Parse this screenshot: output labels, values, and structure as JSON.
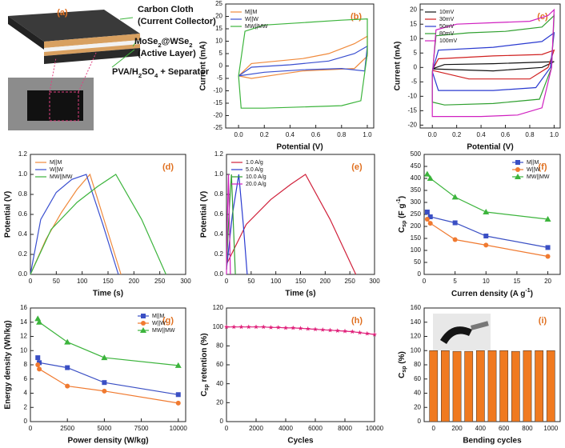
{
  "schematic": {
    "label": "(a)",
    "texts": [
      "Carbon Cloth",
      "(Current Collector)",
      [
        {
          "text": "MoSe"
        },
        {
          "text": "2",
          "sub": true
        },
        {
          "text": "@WSe"
        },
        {
          "text": "2",
          "sub": true
        }
      ],
      "(Active Layer)",
      [
        {
          "text": "PVA/H"
        },
        {
          "text": "2",
          "sub": true
        },
        {
          "text": "SO"
        },
        {
          "text": "4",
          "sub": true
        },
        {
          "text": " + Separator"
        }
      ]
    ]
  },
  "chart_data": [
    {
      "type": "line",
      "label": "(b)",
      "xlabel": "Potential (V)",
      "ylabel": "Current (mA)",
      "legend": "upper left",
      "xlim": [
        -0.1,
        1.05
      ],
      "ylim": [
        -25,
        25
      ],
      "xticks": [
        {
          "value": 0,
          "label": "0.0"
        },
        {
          "value": 0.2,
          "label": "0.2"
        },
        {
          "value": 0.4,
          "label": "0.4"
        },
        {
          "value": 0.6,
          "label": "0.6"
        },
        {
          "value": 0.8,
          "label": "0.8"
        },
        {
          "value": 1,
          "label": "1.0"
        }
      ],
      "yticks": [
        -25,
        -20,
        -15,
        -10,
        -5,
        0,
        5,
        10,
        15,
        20,
        25
      ],
      "series": [
        {
          "name": "M||M",
          "color": "#f08a3c",
          "x": [
            0,
            0.1,
            0.3,
            0.5,
            0.7,
            0.9,
            1.0,
            1.0,
            0.9,
            0.7,
            0.5,
            0.3,
            0.1,
            0
          ],
          "values": [
            -4,
            1,
            2,
            3,
            5,
            9,
            12,
            4,
            -1,
            -1.5,
            -2,
            -3.5,
            -5,
            -4
          ]
        },
        {
          "name": "W||W",
          "color": "#3a4fd0",
          "x": [
            0,
            0.1,
            0.4,
            0.7,
            0.9,
            1.0,
            0.98,
            0.8,
            0.5,
            0.2,
            0
          ],
          "values": [
            -4,
            -0.5,
            0.5,
            2,
            5,
            8,
            -2,
            -1,
            -1.5,
            -2.5,
            -4
          ]
        },
        {
          "name": "MW||MW",
          "color": "#3cb43c",
          "x": [
            0,
            0.05,
            0.2,
            0.5,
            0.8,
            1.0,
            1.0,
            0.95,
            0.8,
            0.5,
            0.2,
            0.02,
            0
          ],
          "values": [
            -4,
            14,
            16.5,
            17.5,
            18.5,
            19,
            5,
            -14,
            -16,
            -16.5,
            -17,
            -17,
            -4
          ]
        }
      ]
    },
    {
      "type": "line",
      "label": "(c)",
      "xlabel": "Potential (V)",
      "ylabel": "Current (mA)",
      "legend": "upper left",
      "xlim": [
        -0.1,
        1.05
      ],
      "ylim": [
        -21,
        22
      ],
      "xticks": [
        {
          "value": 0,
          "label": "0.0"
        },
        {
          "value": 0.2,
          "label": "0.2"
        },
        {
          "value": 0.4,
          "label": "0.4"
        },
        {
          "value": 0.6,
          "label": "0.6"
        },
        {
          "value": 0.8,
          "label": "0.8"
        },
        {
          "value": 1,
          "label": "1.0"
        }
      ],
      "yticks": [
        -20,
        -15,
        -10,
        -5,
        0,
        5,
        10,
        15,
        20
      ],
      "series": [
        {
          "name": "10mV",
          "color": "#111111",
          "x": [
            0,
            0.1,
            0.5,
            1.0,
            0.9,
            0.5,
            0
          ],
          "values": [
            -0.5,
            1,
            1.3,
            2,
            0,
            -1.2,
            -0.5
          ]
        },
        {
          "name": "30mV",
          "color": "#d02020",
          "x": [
            0,
            0.05,
            0.5,
            0.9,
            1.0,
            0.95,
            0.8,
            0.3,
            0
          ],
          "values": [
            -1,
            3,
            4,
            4.5,
            6,
            0,
            -4,
            -4,
            -1
          ]
        },
        {
          "name": "50mV",
          "color": "#2a3ad0",
          "x": [
            0,
            0.05,
            0.5,
            0.9,
            1.0,
            0.97,
            0.85,
            0.5,
            0.05,
            0
          ],
          "values": [
            -1.5,
            6,
            7,
            9,
            12,
            0,
            -7,
            -8,
            -8,
            -1.5
          ]
        },
        {
          "name": "80mV",
          "color": "#30a030",
          "x": [
            0,
            0.03,
            0.3,
            0.6,
            0.9,
            1.0,
            0.98,
            0.88,
            0.5,
            0.1,
            0,
            0
          ],
          "values": [
            -2,
            11,
            12,
            12.5,
            14,
            18,
            0,
            -11,
            -12.5,
            -13,
            -12,
            -2
          ]
        },
        {
          "name": "100mV",
          "color": "#d020c0",
          "x": [
            0,
            0.03,
            0.2,
            0.5,
            0.8,
            0.95,
            1.0,
            0.98,
            0.9,
            0.7,
            0.4,
            0.1,
            0,
            0
          ],
          "values": [
            -3,
            13,
            15,
            15.5,
            16,
            18,
            20,
            0,
            -14,
            -16.5,
            -17,
            -17,
            -17,
            -3
          ]
        }
      ]
    },
    {
      "type": "line",
      "label": "(d)",
      "xlabel": "Time (s)",
      "ylabel": "Potential (V)",
      "legend": "upper left",
      "xlim": [
        0,
        300
      ],
      "ylim": [
        0,
        1.2
      ],
      "xticks": [
        0,
        50,
        100,
        150,
        200,
        250,
        300
      ],
      "yticks": [
        {
          "value": 0,
          "label": "0.0"
        },
        {
          "value": 0.2,
          "label": "0.2"
        },
        {
          "value": 0.4,
          "label": "0.4"
        },
        {
          "value": 0.6,
          "label": "0.6"
        },
        {
          "value": 0.8,
          "label": "0.8"
        },
        {
          "value": 1,
          "label": "1.0"
        },
        {
          "value": 1.2,
          "label": "1.2"
        }
      ],
      "series": [
        {
          "name": "M||M",
          "color": "#f08a3c",
          "x": [
            0,
            30,
            60,
            90,
            115,
            145,
            175
          ],
          "values": [
            0,
            0.35,
            0.62,
            0.85,
            1.0,
            0.5,
            0
          ]
        },
        {
          "name": "W||W",
          "color": "#3a4fd0",
          "x": [
            0,
            20,
            50,
            80,
            108,
            140,
            170
          ],
          "values": [
            0,
            0.55,
            0.82,
            0.95,
            1.0,
            0.5,
            0
          ]
        },
        {
          "name": "MW||MW",
          "color": "#3cb43c",
          "x": [
            0,
            40,
            90,
            130,
            165,
            215,
            262
          ],
          "values": [
            0,
            0.45,
            0.72,
            0.88,
            1.0,
            0.55,
            0
          ]
        }
      ]
    },
    {
      "type": "line",
      "label": "(e)",
      "xlabel": "Time (s)",
      "ylabel": "Potential (V)",
      "legend": "upper left",
      "xlim": [
        0,
        300
      ],
      "ylim": [
        0,
        1.2
      ],
      "xticks": [
        0,
        50,
        100,
        150,
        200,
        250,
        300
      ],
      "yticks": [
        {
          "value": 0,
          "label": "0.0"
        },
        {
          "value": 0.2,
          "label": "0.2"
        },
        {
          "value": 0.4,
          "label": "0.4"
        },
        {
          "value": 0.6,
          "label": "0.6"
        },
        {
          "value": 0.8,
          "label": "0.8"
        },
        {
          "value": 1,
          "label": "1.0"
        },
        {
          "value": 1.2,
          "label": "1.2"
        }
      ],
      "series": [
        {
          "name": "1.0 A/g",
          "color": "#d0203a",
          "x": [
            0,
            40,
            90,
            130,
            160,
            210,
            262
          ],
          "values": [
            0.1,
            0.5,
            0.75,
            0.9,
            1.0,
            0.55,
            0
          ]
        },
        {
          "name": "5.0 A/g",
          "color": "#2a3ad0",
          "x": [
            0,
            12,
            25,
            34,
            42
          ],
          "values": [
            0.05,
            0.6,
            1.0,
            0.5,
            0
          ]
        },
        {
          "name": "10.0 A/g",
          "color": "#30a030",
          "x": [
            0,
            5,
            10,
            14,
            18
          ],
          "values": [
            0.05,
            0.6,
            1.0,
            0.5,
            0
          ]
        },
        {
          "name": "20.0 A/g",
          "color": "#d020c0",
          "x": [
            0,
            2,
            4,
            6,
            8
          ],
          "values": [
            0,
            0.6,
            1.0,
            0.5,
            0
          ]
        }
      ]
    },
    {
      "type": "line",
      "label": "(f)",
      "legend": "upper right",
      "xlabel": [
        {
          "text": "Curren density (A g"
        },
        {
          "text": "-1",
          "sup": true
        },
        {
          "text": ")"
        }
      ],
      "ylabel": [
        {
          "text": "C"
        },
        {
          "text": "sp",
          "sub": true
        },
        {
          "text": " (F g"
        },
        {
          "text": "-1",
          "sup": true
        },
        {
          "text": ")"
        }
      ],
      "xlim": [
        0,
        22
      ],
      "ylim": [
        0,
        500
      ],
      "xticks": [
        0,
        5,
        10,
        15,
        20
      ],
      "yticks": [
        0,
        50,
        100,
        150,
        200,
        250,
        300,
        350,
        400,
        450,
        500
      ],
      "series": [
        {
          "name": "M||M",
          "color": "#3a4fc4",
          "marker": "square",
          "x": [
            0.5,
            1,
            5,
            10,
            20
          ],
          "values": [
            260,
            240,
            215,
            160,
            112
          ]
        },
        {
          "name": "W||W",
          "color": "#f07a30",
          "marker": "circle",
          "x": [
            0.5,
            1,
            5,
            10,
            20
          ],
          "values": [
            230,
            213,
            145,
            122,
            75
          ]
        },
        {
          "name": "MW||MW",
          "color": "#3cb43c",
          "marker": "triangle",
          "x": [
            0.5,
            1,
            5,
            10,
            20
          ],
          "values": [
            418,
            400,
            322,
            260,
            230
          ]
        }
      ]
    },
    {
      "type": "line",
      "label": "(g)",
      "legend": "upper right",
      "xlabel": "Power density (W/kg)",
      "ylabel": "Energy density (Wh/kg)",
      "xlim": [
        0,
        10500
      ],
      "ylim": [
        0,
        16
      ],
      "xticks": [
        0,
        2500,
        5000,
        7500,
        10000
      ],
      "yticks": [
        0,
        2,
        4,
        6,
        8,
        10,
        12,
        14,
        16
      ],
      "series": [
        {
          "name": "M||M",
          "color": "#3a4fc4",
          "marker": "square",
          "x": [
            500,
            600,
            2500,
            5000,
            10000
          ],
          "values": [
            9,
            8.3,
            7.6,
            5.5,
            3.8
          ]
        },
        {
          "name": "W||W",
          "color": "#f07a30",
          "marker": "circle",
          "x": [
            500,
            600,
            2500,
            5000,
            10000
          ],
          "values": [
            8,
            7.4,
            5,
            4.3,
            2.6
          ]
        },
        {
          "name": "MW||MW",
          "color": "#3cb43c",
          "marker": "triangle",
          "x": [
            500,
            600,
            2500,
            5000,
            10000
          ],
          "values": [
            14.5,
            14,
            11.2,
            9,
            7.9
          ]
        }
      ]
    },
    {
      "type": "line",
      "label": "(h)",
      "xlabel": "Cycles",
      "ylabel": [
        {
          "text": "C"
        },
        {
          "text": "sp",
          "sub": true
        },
        {
          "text": " retention (%)"
        }
      ],
      "xlim": [
        0,
        10000
      ],
      "ylim": [
        0,
        120
      ],
      "xticks": [
        0,
        2000,
        4000,
        6000,
        8000,
        10000
      ],
      "yticks": [
        0,
        20,
        40,
        60,
        80,
        100,
        120
      ],
      "series": [
        {
          "color": "#e0207a",
          "marker": "star",
          "x": [
            0,
            500,
            1000,
            1500,
            2000,
            2500,
            3000,
            3500,
            4000,
            4500,
            5000,
            5500,
            6000,
            6500,
            7000,
            7500,
            8000,
            8500,
            9000,
            9500,
            10000
          ],
          "values": [
            100,
            100,
            100,
            100,
            100,
            100,
            99.5,
            99.5,
            99,
            99,
            98.5,
            98,
            97.5,
            97,
            96.5,
            96,
            95.5,
            95,
            94,
            93,
            92
          ]
        }
      ]
    },
    {
      "type": "bar",
      "label": "(i)",
      "xlabel": "Bending cycles",
      "ylabel": [
        {
          "text": "C"
        },
        {
          "text": "sp",
          "sub": true
        },
        {
          "text": " (%)"
        }
      ],
      "xlim": [
        -80,
        1080
      ],
      "ylim": [
        0,
        160
      ],
      "xticks": [
        0,
        200,
        400,
        600,
        800,
        1000
      ],
      "yticks": [
        0,
        20,
        40,
        60,
        80,
        100,
        120,
        140,
        160
      ],
      "series": [
        {
          "color": "#f07a20",
          "x": [
            0,
            100,
            200,
            300,
            400,
            500,
            600,
            700,
            800,
            900,
            1000
          ],
          "values": [
            100,
            100,
            99,
            99,
            100,
            100,
            100,
            99,
            100,
            100,
            100
          ]
        }
      ]
    }
  ]
}
